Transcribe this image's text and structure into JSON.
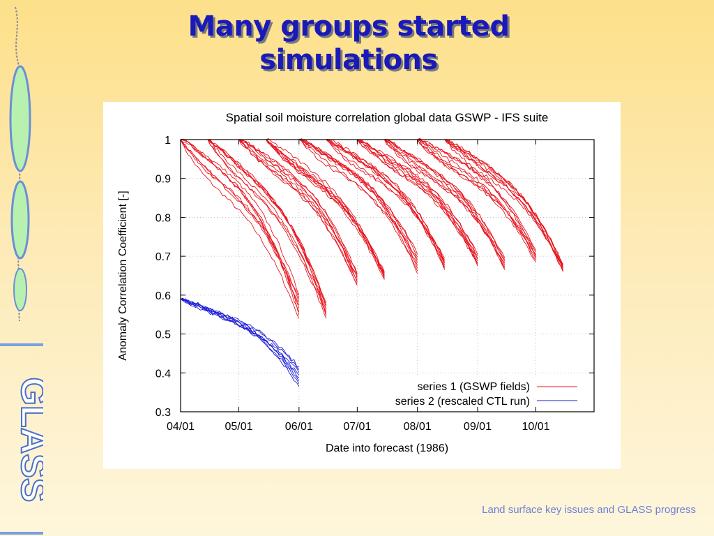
{
  "slide": {
    "title_line1": "Many groups started",
    "title_line2": "simulations",
    "footer": "Land surface key issues and GLASS progress",
    "side_logo_text": "GLASS",
    "title_color": "#1a1ab8",
    "footer_color": "#6d7fd8"
  },
  "chart_data": {
    "type": "line",
    "title": "Spatial soil moisture correlation global data GSWP - IFS suite",
    "xlabel": "Date into forecast (1986)",
    "ylabel": "Anomaly Correlation Coefficient [-]",
    "xlim": [
      "1986-04-01",
      "1986-10-31"
    ],
    "ylim": [
      0.3,
      1.0
    ],
    "x_ticks": [
      "04/01",
      "05/01",
      "06/01",
      "07/01",
      "08/01",
      "09/01",
      "10/01"
    ],
    "y_ticks": [
      "0.3",
      "0.4",
      "0.5",
      "0.6",
      "0.7",
      "0.8",
      "0.9",
      "1"
    ],
    "grid": true,
    "legend_position": "bottom-right",
    "series": [
      {
        "name": "series 1 (GSWP fields)",
        "color": "#e8141e",
        "groups": [
          {
            "start": "1986-04-01",
            "end": "1986-06-01",
            "end_value": 0.57,
            "spread": 0.03
          },
          {
            "start": "1986-04-15",
            "end": "1986-06-15",
            "end_value": 0.56,
            "spread": 0.02
          },
          {
            "start": "1986-05-01",
            "end": "1986-07-01",
            "end_value": 0.64,
            "spread": 0.015
          },
          {
            "start": "1986-05-15",
            "end": "1986-07-15",
            "end_value": 0.65,
            "spread": 0.01
          },
          {
            "start": "1986-06-01",
            "end": "1986-08-01",
            "end_value": 0.68,
            "spread": 0.025
          },
          {
            "start": "1986-06-15",
            "end": "1986-08-15",
            "end_value": 0.68,
            "spread": 0.015
          },
          {
            "start": "1986-07-01",
            "end": "1986-09-01",
            "end_value": 0.69,
            "spread": 0.015
          },
          {
            "start": "1986-07-15",
            "end": "1986-09-15",
            "end_value": 0.68,
            "spread": 0.015
          },
          {
            "start": "1986-08-01",
            "end": "1986-10-01",
            "end_value": 0.7,
            "spread": 0.015
          },
          {
            "start": "1986-08-15",
            "end": "1986-10-15",
            "end_value": 0.67,
            "spread": 0.01
          }
        ]
      },
      {
        "name": "series 2 (rescaled CTL run)",
        "color": "#1c1cd8",
        "groups": [
          {
            "start": "1986-04-01",
            "end": "1986-06-01",
            "start_value": 0.59,
            "end_value": 0.39,
            "spread": 0.025
          }
        ]
      }
    ]
  }
}
